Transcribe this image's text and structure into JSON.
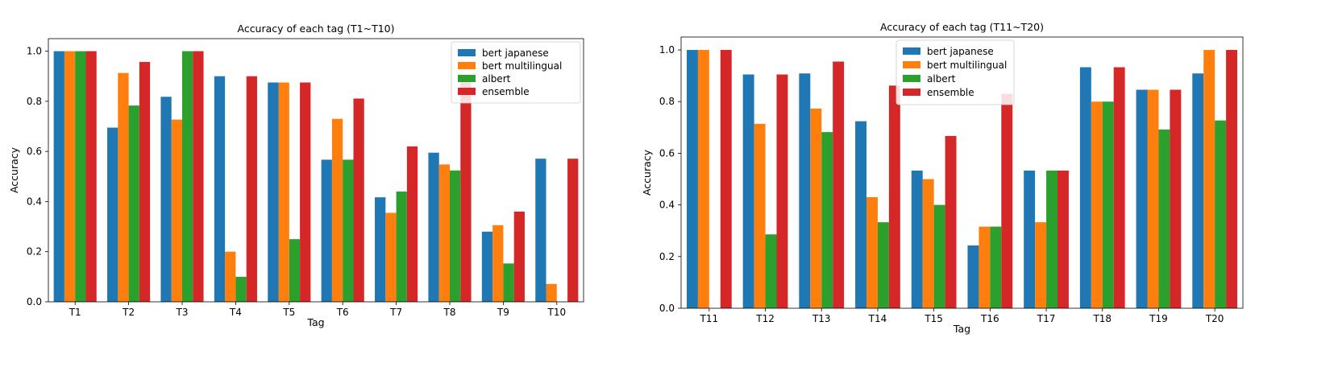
{
  "colors": {
    "bert_japanese": "#1f77b4",
    "bert_multilingual": "#ff7f0e",
    "albert": "#2ca02c",
    "ensemble": "#d62728"
  },
  "chart_data": [
    {
      "type": "bar",
      "title": "Accuracy of each tag (T1~T10)",
      "xlabel": "Tag",
      "ylabel": "Accuracy",
      "ylim": [
        0,
        1.05
      ],
      "yticks": [
        "0.0",
        "0.2",
        "0.4",
        "0.6",
        "0.8",
        "1.0"
      ],
      "legend_position": "top-right",
      "grid": false,
      "categories": [
        "T1",
        "T2",
        "T3",
        "T4",
        "T5",
        "T6",
        "T7",
        "T8",
        "T9",
        "T10"
      ],
      "series": [
        {
          "name": "bert japanese",
          "color": "#1f77b4",
          "values": [
            1.0,
            0.695,
            0.818,
            0.9,
            0.875,
            0.567,
            0.417,
            0.595,
            0.28,
            0.571
          ]
        },
        {
          "name": "bert multilingual",
          "color": "#ff7f0e",
          "values": [
            1.0,
            0.913,
            0.727,
            0.2,
            0.875,
            0.73,
            0.355,
            0.548,
            0.306,
            0.071
          ]
        },
        {
          "name": "albert",
          "color": "#2ca02c",
          "values": [
            1.0,
            0.783,
            1.0,
            0.1,
            0.25,
            0.567,
            0.44,
            0.524,
            0.153,
            0.0
          ]
        },
        {
          "name": "ensemble",
          "color": "#d62728",
          "values": [
            1.0,
            0.957,
            1.0,
            0.9,
            0.875,
            0.811,
            0.62,
            0.905,
            0.36,
            0.571
          ]
        }
      ]
    },
    {
      "type": "bar",
      "title": "Accuracy of each tag (T11~T20)",
      "xlabel": "Tag",
      "ylabel": "Accuracy",
      "ylim": [
        0,
        1.05
      ],
      "yticks": [
        "0.0",
        "0.2",
        "0.4",
        "0.6",
        "0.8",
        "1.0"
      ],
      "legend_position": "top-center",
      "grid": false,
      "categories": [
        "T11",
        "T12",
        "T13",
        "T14",
        "T15",
        "T16",
        "T17",
        "T18",
        "T19",
        "T20"
      ],
      "series": [
        {
          "name": "bert japanese",
          "color": "#1f77b4",
          "values": [
            1.0,
            0.905,
            0.909,
            0.724,
            0.533,
            0.243,
            0.533,
            0.933,
            0.846,
            0.909
          ]
        },
        {
          "name": "bert multilingual",
          "color": "#ff7f0e",
          "values": [
            1.0,
            0.714,
            0.773,
            0.43,
            0.5,
            0.316,
            0.333,
            0.8,
            0.846,
            1.0
          ]
        },
        {
          "name": "albert",
          "color": "#2ca02c",
          "values": [
            0.0,
            0.286,
            0.682,
            0.333,
            0.4,
            0.316,
            0.533,
            0.8,
            0.692,
            0.727
          ]
        },
        {
          "name": "ensemble",
          "color": "#d62728",
          "values": [
            1.0,
            0.905,
            0.955,
            0.862,
            0.667,
            0.83,
            0.533,
            0.933,
            0.846,
            1.0
          ]
        }
      ]
    }
  ]
}
